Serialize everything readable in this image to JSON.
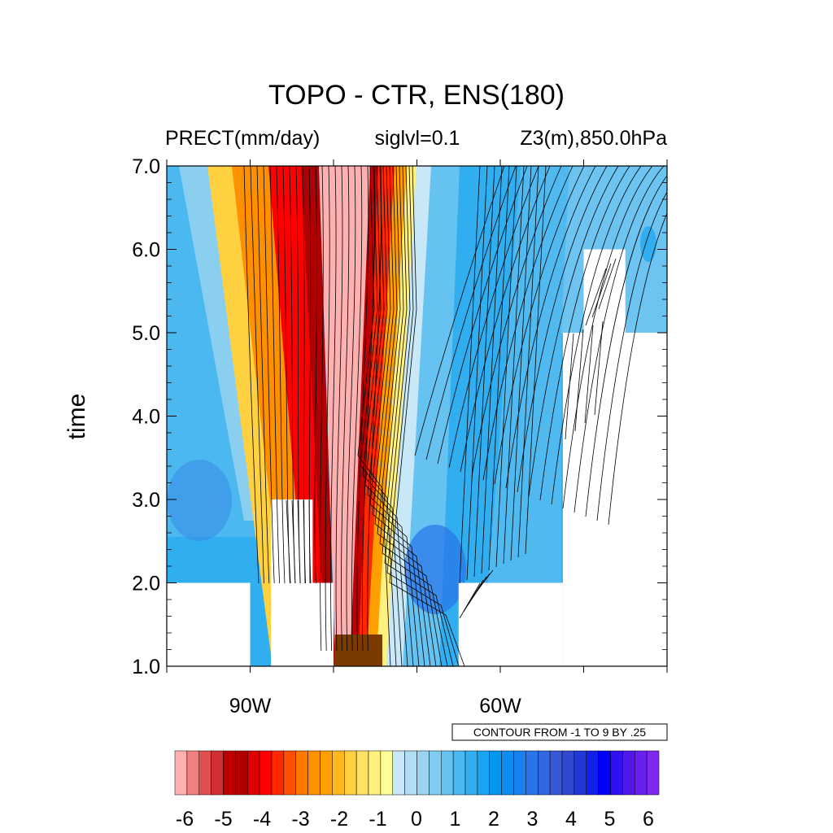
{
  "chart_data": {
    "type": "heatmap",
    "title": "TOPO - CTR, ENS(180)",
    "left_subtitle": "PRECT(mm/day)",
    "center_subtitle": "siglvl=0.1",
    "right_subtitle": "Z3(m),850.0hPa",
    "xlabel": "",
    "ylabel": "time",
    "x_tick_labels": [
      {
        "lon": -90,
        "label": "90W"
      },
      {
        "lon": -60,
        "label": "60W"
      }
    ],
    "y_tick_labels": [
      {
        "value": 1.0,
        "label": "1.0"
      },
      {
        "value": 2.0,
        "label": "2.0"
      },
      {
        "value": 3.0,
        "label": "3.0"
      },
      {
        "value": 4.0,
        "label": "4.0"
      },
      {
        "value": 5.0,
        "label": "5.0"
      },
      {
        "value": 6.0,
        "label": "6.0"
      },
      {
        "value": 7.0,
        "label": "7.0"
      }
    ],
    "xlim": [
      -100,
      -40
    ],
    "ylim": [
      1.0,
      7.0
    ],
    "contour_info": "CONTOUR FROM -1 TO 9 BY .25",
    "colorbar": {
      "labels": [
        "-6",
        "-5",
        "-4",
        "-3",
        "-2",
        "-1",
        "0",
        "1",
        "2",
        "3",
        "4",
        "5",
        "6"
      ],
      "range": [
        -6,
        6
      ],
      "colors": [
        "#ffb0b0",
        "#f08080",
        "#e05050",
        "#d03030",
        "#c00000",
        "#b00000",
        "#e00000",
        "#ff0000",
        "#ff2800",
        "#ff5000",
        "#ff7800",
        "#ff9000",
        "#ffa000",
        "#ffb820",
        "#ffd040",
        "#ffe060",
        "#fff080",
        "#ffff9a",
        "#c8e8f8",
        "#b0def4",
        "#9ad4f0",
        "#80ccf0",
        "#66c2f0",
        "#4cb8f0",
        "#30aef0",
        "#18a4f0",
        "#0098f0",
        "#0a8cf0",
        "#1880f0",
        "#2874e8",
        "#3066e0",
        "#3858d8",
        "#3048d0",
        "#2038d8",
        "#1020e8",
        "#0000ff",
        "#3010f0",
        "#5018e8",
        "#6820f0",
        "#8028f0"
      ]
    },
    "sig_mask_boxes_data": [
      {
        "lon": [
          -100,
          -90
        ],
        "time": [
          1.0,
          2.0
        ]
      },
      {
        "lon": [
          -87.5,
          -82.5
        ],
        "time": [
          2.0,
          3.0
        ]
      },
      {
        "lon": [
          -87.5,
          -80
        ],
        "time": [
          1.0,
          2.0
        ]
      },
      {
        "lon": [
          -65,
          -52.5
        ],
        "time": [
          1.0,
          2.0
        ]
      },
      {
        "lon": [
          -52.5,
          -40
        ],
        "time": [
          1.0,
          5.0
        ]
      },
      {
        "lon": [
          -50,
          -45
        ],
        "time": [
          5.0,
          6.0
        ]
      }
    ]
  }
}
